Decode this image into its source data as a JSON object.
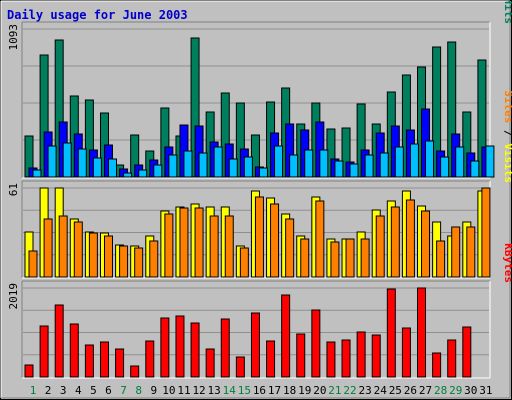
{
  "chart_data": {
    "type": "bar",
    "title": "Daily usage for June 2003",
    "title_color": "#0000cc",
    "x": [
      "1",
      "2",
      "3",
      "4",
      "5",
      "6",
      "7",
      "8",
      "9",
      "10",
      "11",
      "12",
      "13",
      "14",
      "15",
      "16",
      "17",
      "18",
      "19",
      "20",
      "21",
      "22",
      "23",
      "24",
      "25",
      "26",
      "27",
      "28",
      "29",
      "30",
      "31"
    ],
    "weekend_days": [
      "1",
      "7",
      "8",
      "14",
      "15",
      "21",
      "22",
      "28",
      "29"
    ],
    "weekend_color": "#007f3f",
    "weekday_color": "#000000",
    "grid": true,
    "background": "#c0c0c0",
    "panels": [
      {
        "key": "hits",
        "ymax_label": "1093",
        "ylim": [
          0,
          1093
        ],
        "legend": [
          {
            "text": "Pages",
            "color": "#00a0ff"
          },
          {
            "text": " / ",
            "color": "#000000"
          },
          {
            "text": "Files",
            "color": "#0000ff"
          },
          {
            "text": " / ",
            "color": "#000000"
          },
          {
            "text": "Hits",
            "color": "#007f5f"
          }
        ],
        "series": [
          {
            "name": "Hits",
            "color": "#007f5f",
            "values": [
              300,
              900,
              1010,
              600,
              570,
              470,
              90,
              310,
              190,
              510,
              305,
              1030,
              480,
              620,
              550,
              310,
              555,
              660,
              390,
              550,
              355,
              360,
              540,
              395,
              630,
              755,
              815,
              960,
              1000,
              480,
              865
            ]
          },
          {
            "name": "Files",
            "color": "#0000ff",
            "values": [
              70,
              330,
              405,
              320,
              200,
              240,
              60,
              90,
              125,
              220,
              385,
              375,
              255,
              245,
              210,
              75,
              325,
              390,
              350,
              405,
              130,
              110,
              200,
              325,
              375,
              345,
              500,
              190,
              320,
              175,
              220
            ]
          },
          {
            "name": "Pages",
            "color": "#00bfff",
            "values": [
              50,
              230,
              250,
              210,
              140,
              135,
              30,
              50,
              85,
              165,
              195,
              180,
              225,
              130,
              150,
              65,
              230,
              160,
              200,
              200,
              115,
              95,
              165,
              175,
              220,
              245,
              265,
              145,
              225,
              115,
              230
            ]
          }
        ]
      },
      {
        "key": "visits",
        "ymax_label": "61",
        "ylim": [
          0,
          61
        ],
        "legend": [
          {
            "text": "Sites",
            "color": "#ff7f00"
          },
          {
            "text": " / ",
            "color": "#000000"
          },
          {
            "text": "Visits",
            "color": "#ffff00"
          }
        ],
        "series": [
          {
            "name": "Visits",
            "color": "#ffff00",
            "values": [
              31,
              61,
              61,
              40,
              31,
              30,
              22,
              21,
              28,
              45,
              48,
              50,
              48,
              48,
              21,
              59,
              54,
              43,
              28,
              55,
              26,
              26,
              31,
              46,
              52,
              59,
              49,
              38,
              28,
              38,
              59
            ]
          },
          {
            "name": "Sites",
            "color": "#ff7f00",
            "values": [
              18,
              40,
              42,
              38,
              30,
              28,
              21,
              20,
              25,
              43,
              47,
              47,
              42,
              42,
              20,
              55,
              50,
              40,
              26,
              52,
              24,
              26,
              26,
              42,
              48,
              53,
              45,
              25,
              34,
              34,
              61
            ]
          }
        ]
      },
      {
        "key": "kbytes",
        "ymax_label": "2019",
        "ylim": [
          0,
          2019
        ],
        "legend": [
          {
            "text": "KBytes",
            "color": "#ff0000"
          }
        ],
        "series": [
          {
            "name": "KBytes",
            "color": "#ff0000",
            "values": [
              265,
              1165,
              1640,
              1200,
              720,
              790,
              640,
              240,
              810,
              1345,
              1385,
              1235,
              645,
              1315,
              460,
              1460,
              820,
              1855,
              985,
              1525,
              785,
              830,
              1015,
              960,
              1990,
              1105,
              2019,
              540,
              830,
              1145,
              0
            ]
          }
        ]
      }
    ]
  }
}
